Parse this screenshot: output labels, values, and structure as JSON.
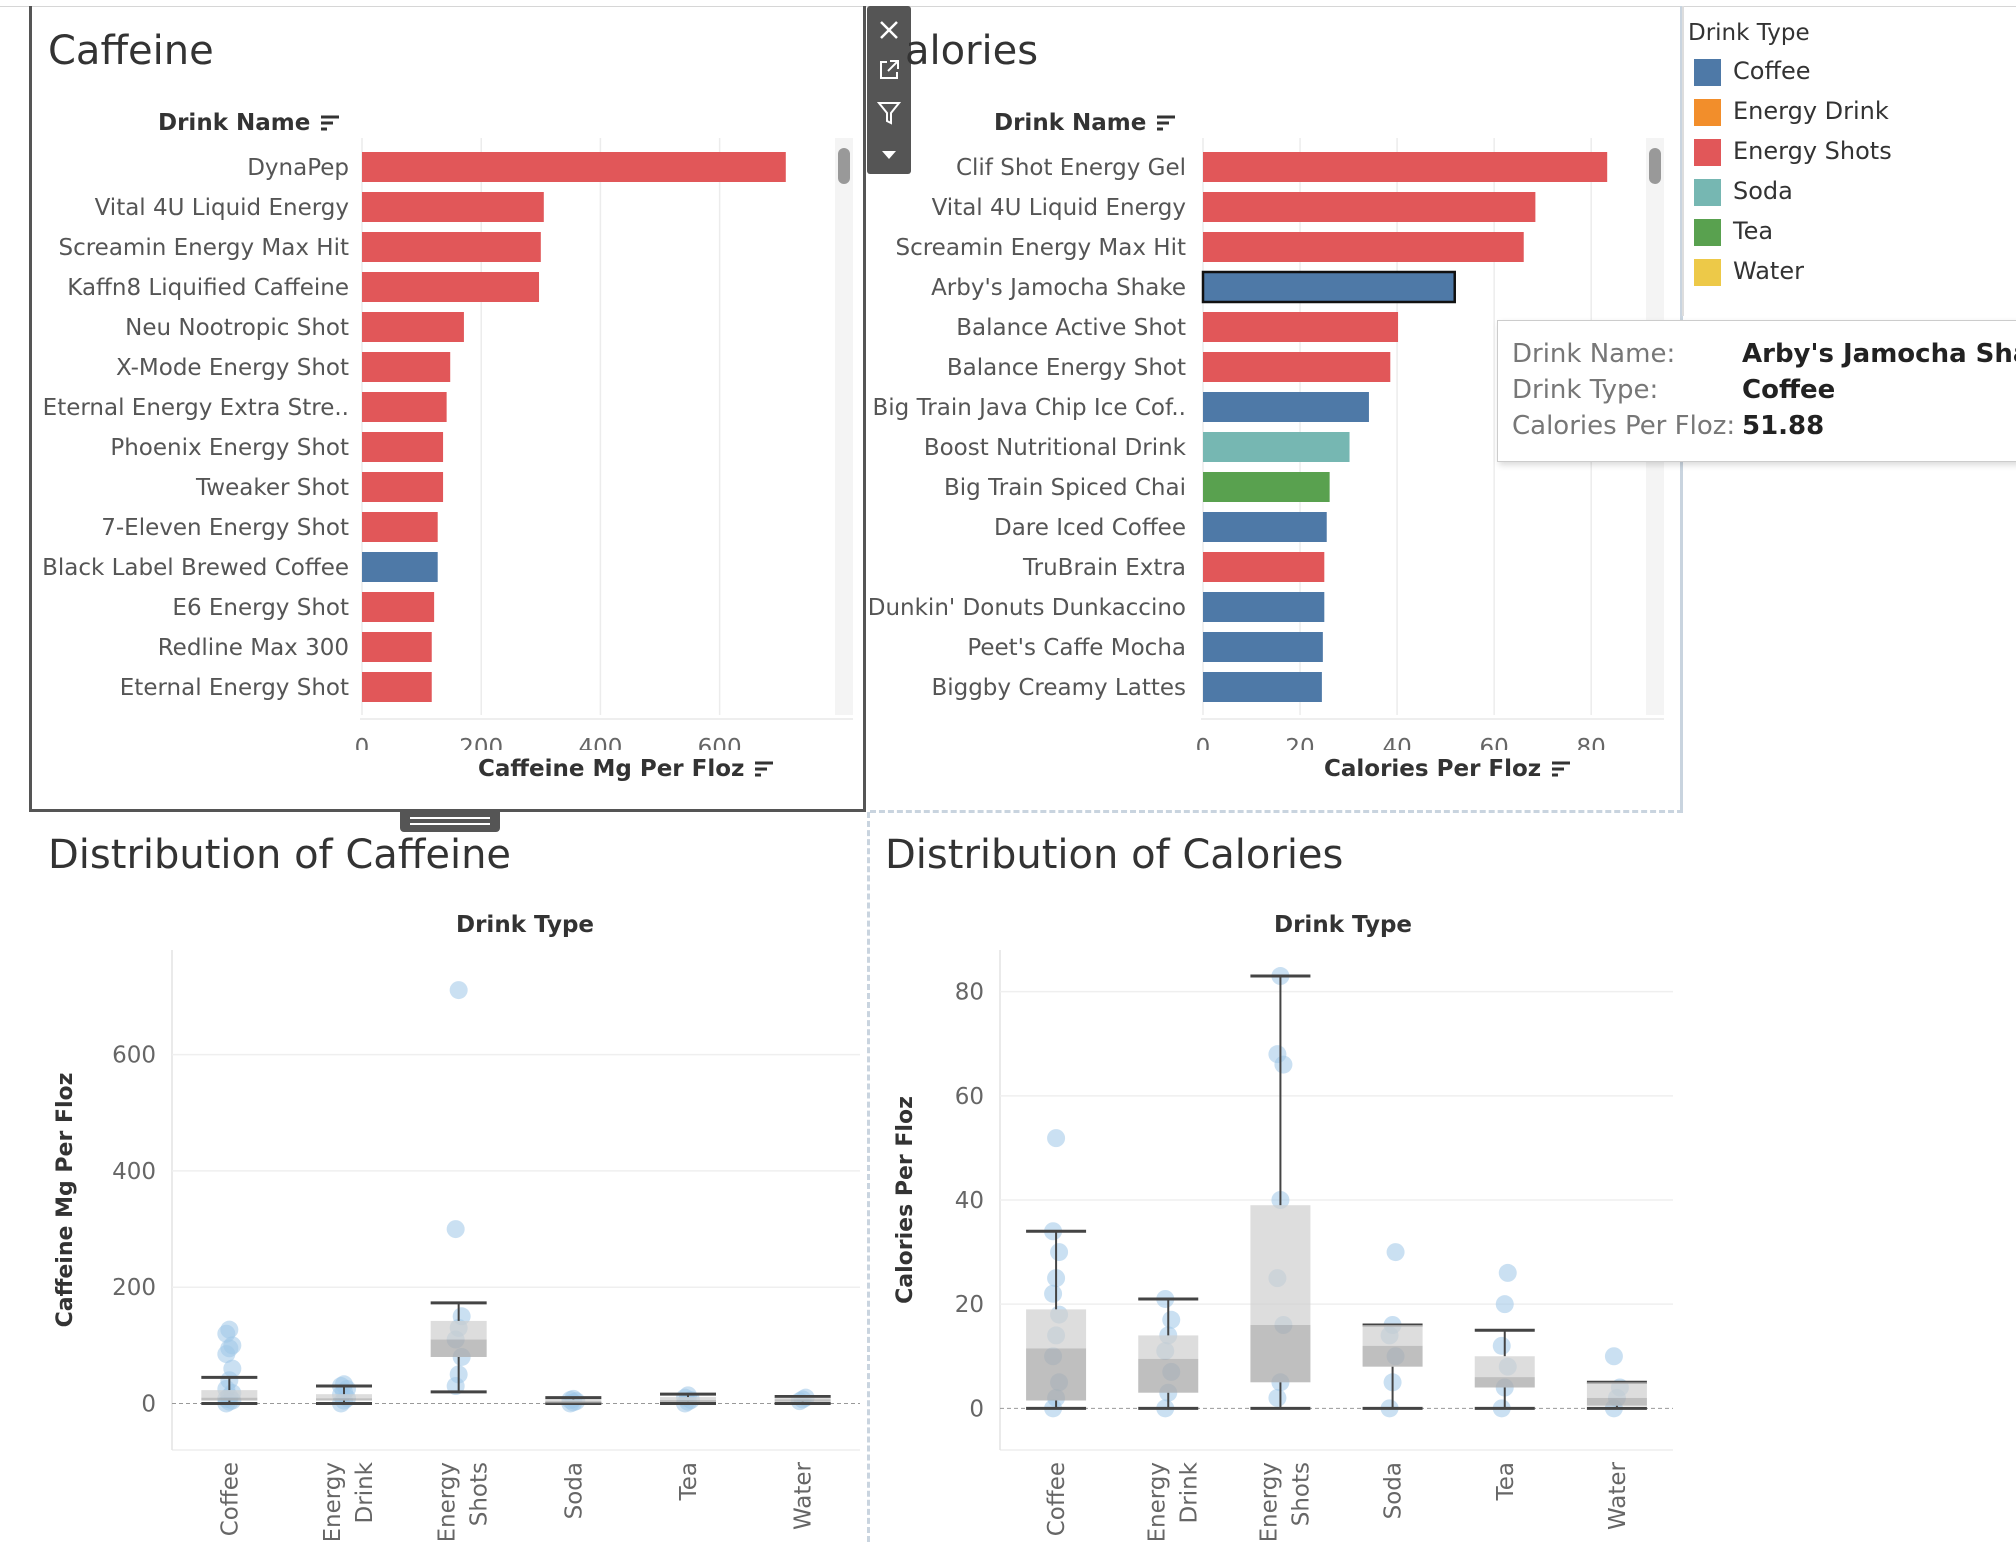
{
  "caffeine_panel": {
    "title": "Caffeine",
    "row_header": "Drink Name",
    "axis_title": "Caffeine Mg Per Floz"
  },
  "calories_panel": {
    "title": "alories",
    "row_header": "Drink Name",
    "axis_title": "Calories Per Floz"
  },
  "caffeine_dist_panel": {
    "title": "Distribution of Caffeine",
    "col_header": "Drink Type",
    "axis_title": "Caffeine Mg Per Floz"
  },
  "calories_dist_panel": {
    "title": "Distribution of Calories",
    "col_header": "Drink Type",
    "axis_title": "Calories Per Floz"
  },
  "legend": {
    "title": "Drink Type",
    "items": [
      {
        "label": "Coffee",
        "color": "#4e79a7"
      },
      {
        "label": "Energy Drink",
        "color": "#f28e2b"
      },
      {
        "label": "Energy Shots",
        "color": "#e15759"
      },
      {
        "label": "Soda",
        "color": "#76b7b2"
      },
      {
        "label": "Tea",
        "color": "#59a14f"
      },
      {
        "label": "Water",
        "color": "#edc948"
      }
    ]
  },
  "tooltip": {
    "drink_name_label": "Drink Name:",
    "drink_name_value": "Arby's Jamocha Shake",
    "drink_type_label": "Drink Type:",
    "drink_type_value": "Coffee",
    "calories_label": "Calories Per Floz:",
    "calories_value": "51.88"
  },
  "toolbar": {
    "close_icon": "close-icon",
    "open_icon": "external-link-icon",
    "filter_icon": "filter-icon",
    "more_icon": "chevron-down-icon"
  },
  "chart_data": [
    {
      "id": "caffeine_bars",
      "type": "bar",
      "orientation": "horizontal",
      "title": "Caffeine",
      "xlabel": "Caffeine Mg Per Floz",
      "ylabel": "Drink Name",
      "xlim": [
        0,
        760
      ],
      "xticks": [
        0,
        200,
        400,
        600
      ],
      "bars": [
        {
          "name": "DynaPep",
          "value": 711,
          "type": "Energy Shots"
        },
        {
          "name": "Vital 4U Liquid Energy",
          "value": 305,
          "type": "Energy Shots"
        },
        {
          "name": "Screamin Energy Max Hit",
          "value": 300,
          "type": "Energy Shots"
        },
        {
          "name": "Kaffn8 Liquified Caffeine",
          "value": 297,
          "type": "Energy Shots"
        },
        {
          "name": "Neu Nootropic Shot",
          "value": 171,
          "type": "Energy Shots"
        },
        {
          "name": "X-Mode Energy Shot",
          "value": 148,
          "type": "Energy Shots"
        },
        {
          "name": "Eternal Energy Extra Stre..",
          "value": 142,
          "type": "Energy Shots"
        },
        {
          "name": "Phoenix Energy Shot",
          "value": 136,
          "type": "Energy Shots"
        },
        {
          "name": "Tweaker Shot",
          "value": 136,
          "type": "Energy Shots"
        },
        {
          "name": "7-Eleven Energy Shot",
          "value": 127,
          "type": "Energy Shots"
        },
        {
          "name": "Black Label Brewed Coffee",
          "value": 127,
          "type": "Coffee"
        },
        {
          "name": "E6 Energy Shot",
          "value": 121,
          "type": "Energy Shots"
        },
        {
          "name": "Redline Max 300",
          "value": 117,
          "type": "Energy Shots"
        },
        {
          "name": "Eternal Energy Shot",
          "value": 117,
          "type": "Energy Shots"
        }
      ]
    },
    {
      "id": "calories_bars",
      "type": "bar",
      "orientation": "horizontal",
      "title": "Calories",
      "xlabel": "Calories Per Floz",
      "ylabel": "Drink Name",
      "xlim": [
        0,
        88
      ],
      "xticks": [
        0,
        20,
        40,
        60,
        80
      ],
      "bars": [
        {
          "name": "Clif Shot Energy Gel",
          "value": 83.3,
          "type": "Energy Shots"
        },
        {
          "name": "Vital 4U Liquid Energy",
          "value": 68.5,
          "type": "Energy Shots"
        },
        {
          "name": "Screamin Energy Max Hit",
          "value": 66.1,
          "type": "Energy Shots"
        },
        {
          "name": "Arby's Jamocha Shake",
          "value": 51.88,
          "type": "Coffee",
          "highlighted": true
        },
        {
          "name": "Balance Active Shot",
          "value": 40.2,
          "type": "Energy Shots"
        },
        {
          "name": "Balance Energy Shot",
          "value": 38.6,
          "type": "Energy Shots"
        },
        {
          "name": "Big Train Java Chip Ice Cof..",
          "value": 34.2,
          "type": "Coffee"
        },
        {
          "name": "Boost Nutritional Drink",
          "value": 30.2,
          "type": "Soda"
        },
        {
          "name": "Big Train Spiced Chai",
          "value": 26.1,
          "type": "Tea"
        },
        {
          "name": "Dare Iced Coffee",
          "value": 25.5,
          "type": "Coffee"
        },
        {
          "name": "TruBrain Extra",
          "value": 25.0,
          "type": "Energy Shots"
        },
        {
          "name": "Dunkin' Donuts Dunkaccino",
          "value": 25.0,
          "type": "Coffee"
        },
        {
          "name": "Peet's Caffe Mocha",
          "value": 24.7,
          "type": "Coffee"
        },
        {
          "name": "Biggby Creamy Lattes",
          "value": 24.5,
          "type": "Coffee"
        }
      ]
    },
    {
      "id": "caffeine_box",
      "type": "box",
      "title": "Distribution of Caffeine",
      "xlabel": "Drink Type",
      "ylabel": "Caffeine Mg Per Floz",
      "ylim": [
        -80,
        780
      ],
      "yticks": [
        0,
        200,
        400,
        600
      ],
      "categories": [
        "Coffee",
        "Energy Drink",
        "Energy Shots",
        "Soda",
        "Tea",
        "Water"
      ],
      "boxes": [
        {
          "min": 0,
          "q1": 5,
          "median": 10,
          "q3": 23,
          "max": 45
        },
        {
          "min": 0,
          "q1": 5,
          "median": 9,
          "q3": 16,
          "max": 30
        },
        {
          "min": 20,
          "q1": 80,
          "median": 110,
          "q3": 142,
          "max": 173
        },
        {
          "min": 0,
          "q1": 2,
          "median": 4,
          "q3": 7,
          "max": 10
        },
        {
          "min": 0,
          "q1": 3,
          "median": 6,
          "q3": 11,
          "max": 16
        },
        {
          "min": 0,
          "q1": 3,
          "median": 7,
          "q3": 10,
          "max": 12
        }
      ],
      "points": [
        {
          "cat": "Coffee",
          "values": [
            0,
            3,
            5,
            8,
            12,
            18,
            25,
            40,
            60,
            85,
            95,
            100,
            120,
            127
          ]
        },
        {
          "cat": "Energy Drink",
          "values": [
            0,
            5,
            9,
            15,
            20,
            25,
            30,
            33
          ]
        },
        {
          "cat": "Energy Shots",
          "values": [
            30,
            50,
            80,
            110,
            130,
            150,
            300,
            711
          ]
        },
        {
          "cat": "Soda",
          "values": [
            0,
            2,
            4,
            6,
            8
          ]
        },
        {
          "cat": "Tea",
          "values": [
            0,
            3,
            6,
            10,
            14
          ]
        },
        {
          "cat": "Water",
          "values": [
            4,
            7,
            10
          ]
        }
      ]
    },
    {
      "id": "calories_box",
      "type": "box",
      "title": "Distribution of Calories",
      "xlabel": "Drink Type",
      "ylabel": "Calories Per Floz",
      "ylim": [
        -8,
        88
      ],
      "yticks": [
        0,
        20,
        40,
        60,
        80
      ],
      "categories": [
        "Coffee",
        "Energy Drink",
        "Energy Shots",
        "Soda",
        "Tea",
        "Water"
      ],
      "boxes": [
        {
          "min": 0,
          "q1": 1.5,
          "median": 11.5,
          "q3": 19,
          "max": 34
        },
        {
          "min": 0,
          "q1": 3,
          "median": 9.5,
          "q3": 14,
          "max": 21
        },
        {
          "min": 0,
          "q1": 5,
          "median": 16,
          "q3": 39,
          "max": 83
        },
        {
          "min": 0,
          "q1": 8,
          "median": 12,
          "q3": 16,
          "max": 16
        },
        {
          "min": 0,
          "q1": 4,
          "median": 6,
          "q3": 10,
          "max": 15
        },
        {
          "min": 0,
          "q1": 0.5,
          "median": 2,
          "q3": 5,
          "max": 5
        }
      ],
      "points": [
        {
          "cat": "Coffee",
          "values": [
            0,
            2,
            5,
            10,
            14,
            18,
            22,
            25,
            30,
            34,
            51.88
          ]
        },
        {
          "cat": "Energy Drink",
          "values": [
            0,
            3,
            7,
            11,
            14,
            17,
            21
          ]
        },
        {
          "cat": "Energy Shots",
          "values": [
            2,
            5,
            16,
            25,
            40,
            66,
            68,
            83
          ]
        },
        {
          "cat": "Soda",
          "values": [
            0,
            5,
            10,
            14,
            16,
            30
          ]
        },
        {
          "cat": "Tea",
          "values": [
            0,
            4,
            8,
            12,
            20,
            26
          ]
        },
        {
          "cat": "Water",
          "values": [
            0,
            2,
            4,
            10
          ]
        }
      ]
    }
  ]
}
